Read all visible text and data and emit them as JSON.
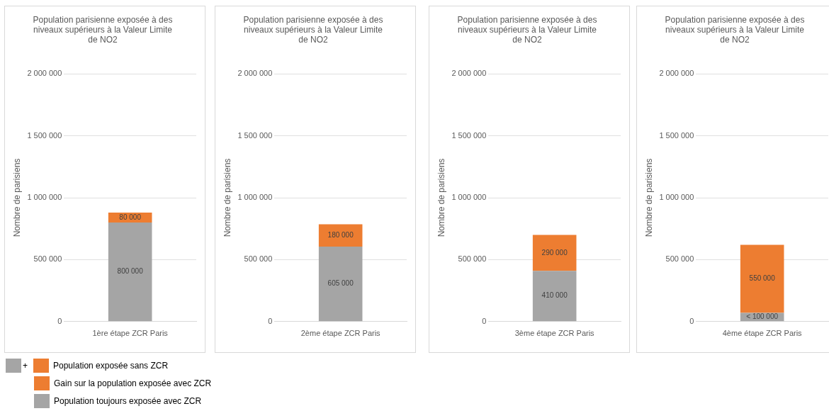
{
  "chart_data": [
    {
      "type": "bar",
      "title": "Population parisienne exposée à des niveaux supérieurs à la Valeur Limite de NO2",
      "ylabel": "Nombre de parisiens",
      "categories": [
        "1ère étape ZCR Paris"
      ],
      "stacked": true,
      "ylim": [
        0,
        2000000
      ],
      "yticks": [
        {
          "value": 0,
          "label": "0"
        },
        {
          "value": 500000,
          "label": "500 000"
        },
        {
          "value": 1000000,
          "label": "1 000 000"
        },
        {
          "value": 1500000,
          "label": "1 500 000"
        },
        {
          "value": 2000000,
          "label": "2 000 000"
        }
      ],
      "grid": "y",
      "legend": "bottom",
      "annotations": [
        "+",
        "Population exposée sans ZCR"
      ],
      "series": [
        {
          "name": "Population toujours exposée avec ZCR",
          "color": "#a5a5a5",
          "values": [
            800000
          ],
          "value_labels": [
            "800 000"
          ]
        },
        {
          "name": "Gain sur la population exposée avec ZCR",
          "color": "#ed7d31",
          "values": [
            80000
          ],
          "value_labels": [
            "80 000"
          ]
        }
      ]
    },
    {
      "type": "bar",
      "title": "Population parisienne exposée à des niveaux supérieurs à la Valeur Limite de NO2",
      "ylabel": "Nombre de parisiens",
      "categories": [
        "2ème étape ZCR Paris"
      ],
      "stacked": true,
      "ylim": [
        0,
        2000000
      ],
      "yticks": [
        {
          "value": 0,
          "label": "0"
        },
        {
          "value": 500000,
          "label": "500 000"
        },
        {
          "value": 1000000,
          "label": "1 000 000"
        },
        {
          "value": 1500000,
          "label": "1 500 000"
        },
        {
          "value": 2000000,
          "label": "2 000 000"
        }
      ],
      "grid": "y",
      "series": [
        {
          "color": "#a5a5a5",
          "values": [
            605000
          ],
          "value_labels": [
            "605 000"
          ]
        },
        {
          "color": "#ed7d31",
          "values": [
            180000
          ],
          "value_labels": [
            "180 000"
          ]
        }
      ]
    },
    {
      "type": "bar",
      "title": "Population parisienne exposée à des niveaux supérieurs à la Valeur Limite de NO2",
      "ylabel": "Nombre de parisiens",
      "categories": [
        "3ème étape ZCR Paris"
      ],
      "stacked": true,
      "ylim": [
        0,
        2000000
      ],
      "yticks": [
        {
          "value": 0,
          "label": "0"
        },
        {
          "value": 500000,
          "label": "500 000"
        },
        {
          "value": 1000000,
          "label": "1 000 000"
        },
        {
          "value": 1500000,
          "label": "1 500 000"
        },
        {
          "value": 2000000,
          "label": "2 000 000"
        }
      ],
      "grid": "y",
      "series": [
        {
          "color": "#a5a5a5",
          "values": [
            410000
          ],
          "value_labels": [
            "410 000"
          ]
        },
        {
          "color": "#ed7d31",
          "values": [
            290000
          ],
          "value_labels": [
            "290 000"
          ]
        }
      ]
    },
    {
      "type": "bar",
      "title": "Population parisienne exposée à des niveaux supérieurs à la Valeur Limite de NO2",
      "ylabel": "Nombre de parisiens",
      "categories": [
        "4ème étape ZCR Paris"
      ],
      "stacked": true,
      "ylim": [
        0,
        2000000
      ],
      "yticks": [
        {
          "value": 0,
          "label": "0"
        },
        {
          "value": 500000,
          "label": "500 000"
        },
        {
          "value": 1000000,
          "label": "1 000 000"
        },
        {
          "value": 1500000,
          "label": "1 500 000"
        },
        {
          "value": 2000000,
          "label": "2 000 000"
        }
      ],
      "grid": "y",
      "series": [
        {
          "color": "#a5a5a5",
          "values": [
            70000
          ],
          "value_labels": [
            "< 100 000"
          ]
        },
        {
          "color": "#ed7d31",
          "values": [
            550000
          ],
          "value_labels": [
            "550 000"
          ]
        }
      ]
    }
  ]
}
